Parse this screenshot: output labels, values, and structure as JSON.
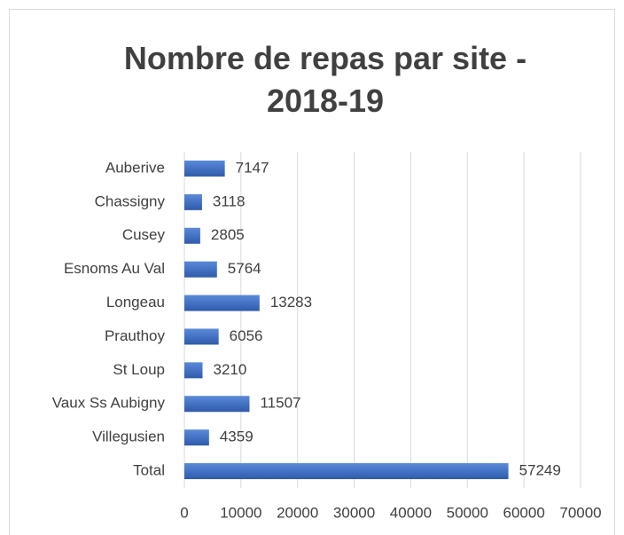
{
  "chart_data": {
    "type": "bar",
    "orientation": "horizontal",
    "title": "Nombre de repas par site - 2018-19",
    "categories": [
      "Auberive",
      "Chassigny",
      "Cusey",
      "Esnoms Au Val",
      "Longeau",
      "Prauthoy",
      "St Loup",
      "Vaux Ss Aubigny",
      "Villegusien",
      "Total"
    ],
    "values": [
      7147,
      3118,
      2805,
      5764,
      13283,
      6056,
      3210,
      11507,
      4359,
      57249
    ],
    "color": "#4472c4",
    "xlim": [
      0,
      70000
    ],
    "xticks": [
      0,
      10000,
      20000,
      30000,
      40000,
      50000,
      60000,
      70000
    ],
    "grid": true
  }
}
